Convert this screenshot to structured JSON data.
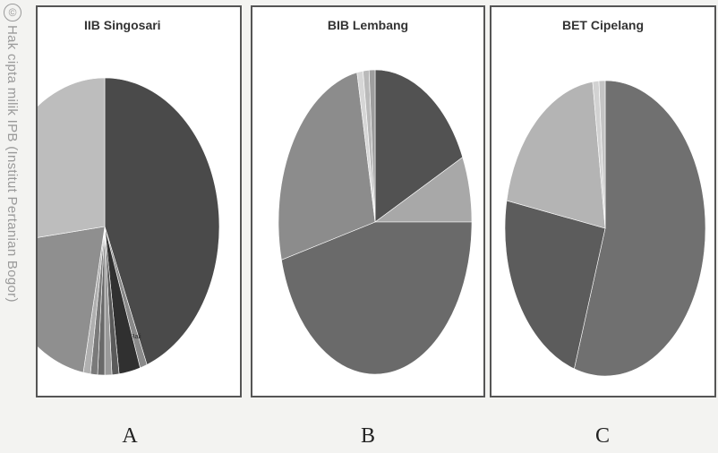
{
  "watermark": {
    "symbol": "©",
    "text": "Hak cipta milik IPB (Institut Pertanian Bogor)"
  },
  "panel_letters": [
    "A",
    "B",
    "C"
  ],
  "chart_data": [
    {
      "type": "pie",
      "title": "IIB Singosari",
      "slices": [
        {
          "label": "",
          "value": 44,
          "color": "#4a4a4a"
        },
        {
          "label": "Bali",
          "value": 1,
          "color": "#8a8a8a"
        },
        {
          "label": "",
          "value": 3,
          "color": "#303030"
        },
        {
          "label": "",
          "value": 1,
          "color": "#5a5a5a"
        },
        {
          "label": "",
          "value": 1,
          "color": "#9a9a9a"
        },
        {
          "label": "",
          "value": 1,
          "color": "#6a6a6a"
        },
        {
          "label": "",
          "value": 1,
          "color": "#7a7a7a"
        },
        {
          "label": "",
          "value": 1,
          "color": "#b0b0b0"
        },
        {
          "label": "",
          "value": 20,
          "color": "#8f8f8f"
        },
        {
          "label": "",
          "value": 27,
          "color": "#bdbdbd"
        }
      ]
    },
    {
      "type": "pie",
      "title": "BIB Lembang",
      "slices": [
        {
          "label": "",
          "value": 18,
          "color": "#525252"
        },
        {
          "label": "",
          "value": 7,
          "color": "#a8a8a8"
        },
        {
          "label": "",
          "value": 46,
          "color": "#6a6a6a"
        },
        {
          "label": "",
          "value": 26,
          "color": "#8c8c8c"
        },
        {
          "label": "",
          "value": 1,
          "color": "#d6d6d6"
        },
        {
          "label": "",
          "value": 1,
          "color": "#bababa"
        },
        {
          "label": "",
          "value": 1,
          "color": "#9e9e9e"
        }
      ]
    },
    {
      "type": "pie",
      "title": "BET Cipelang",
      "slices": [
        {
          "label": "",
          "value": 55,
          "color": "#707070"
        },
        {
          "label": "",
          "value": 23,
          "color": "#5c5c5c"
        },
        {
          "label": "",
          "value": 20,
          "color": "#b4b4b4"
        },
        {
          "label": "",
          "value": 1,
          "color": "#d2d2d2"
        },
        {
          "label": "",
          "value": 1,
          "color": "#c4c4c4"
        }
      ]
    }
  ]
}
